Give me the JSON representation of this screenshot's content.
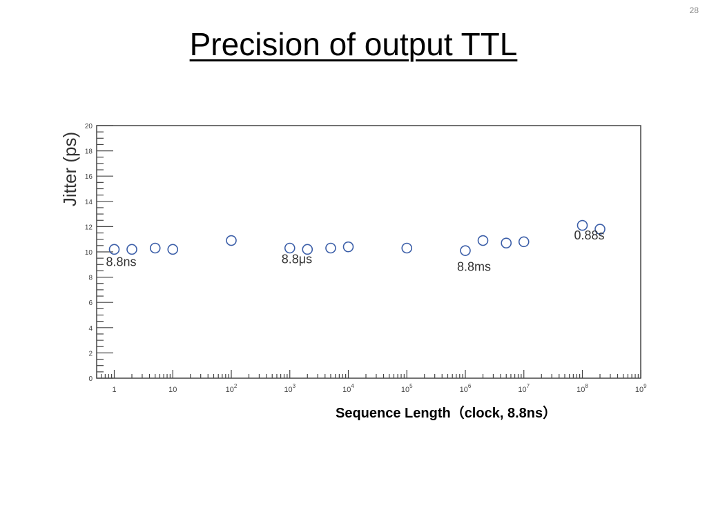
{
  "slide": {
    "number": "28",
    "title": "Precision of output TTL"
  },
  "chart_data": {
    "type": "scatter",
    "title": "Precision of output TTL",
    "xlabel": "Sequence Length（clock, 8.8ns）",
    "ylabel": "Jitter (ps)",
    "xscale": "log",
    "xlim": [
      0.5,
      1000000000
    ],
    "ylim": [
      0,
      20
    ],
    "grid": false,
    "legend": null,
    "x_tick_labels": [
      "1",
      "10",
      "10^2",
      "10^3",
      "10^4",
      "10^5",
      "10^6",
      "10^7",
      "10^8",
      "10^9"
    ],
    "y_tick_labels": [
      "0",
      "2",
      "4",
      "6",
      "8",
      "10",
      "12",
      "14",
      "16",
      "18",
      "20"
    ],
    "marker": {
      "shape": "open-circle",
      "color": "#3b5ea8"
    },
    "series": [
      {
        "name": "Jitter",
        "x": [
          1,
          2,
          5,
          10,
          100,
          1000,
          2000,
          5000,
          10000,
          100000,
          1000000,
          2000000,
          5000000,
          10000000,
          100000000,
          200000000
        ],
        "y": [
          10.2,
          10.2,
          10.3,
          10.2,
          10.9,
          10.3,
          10.2,
          10.3,
          10.4,
          10.3,
          10.1,
          10.9,
          10.7,
          10.8,
          12.1,
          11.8
        ]
      }
    ],
    "annotations": [
      {
        "text": "8.8ns",
        "x": 1,
        "y": 9.0
      },
      {
        "text": "8.8μs",
        "x": 1000,
        "y": 9.2
      },
      {
        "text": "8.8ms",
        "x": 1000000,
        "y": 8.6
      },
      {
        "text": "0.88s",
        "x": 100000000,
        "y": 11.1
      }
    ]
  }
}
